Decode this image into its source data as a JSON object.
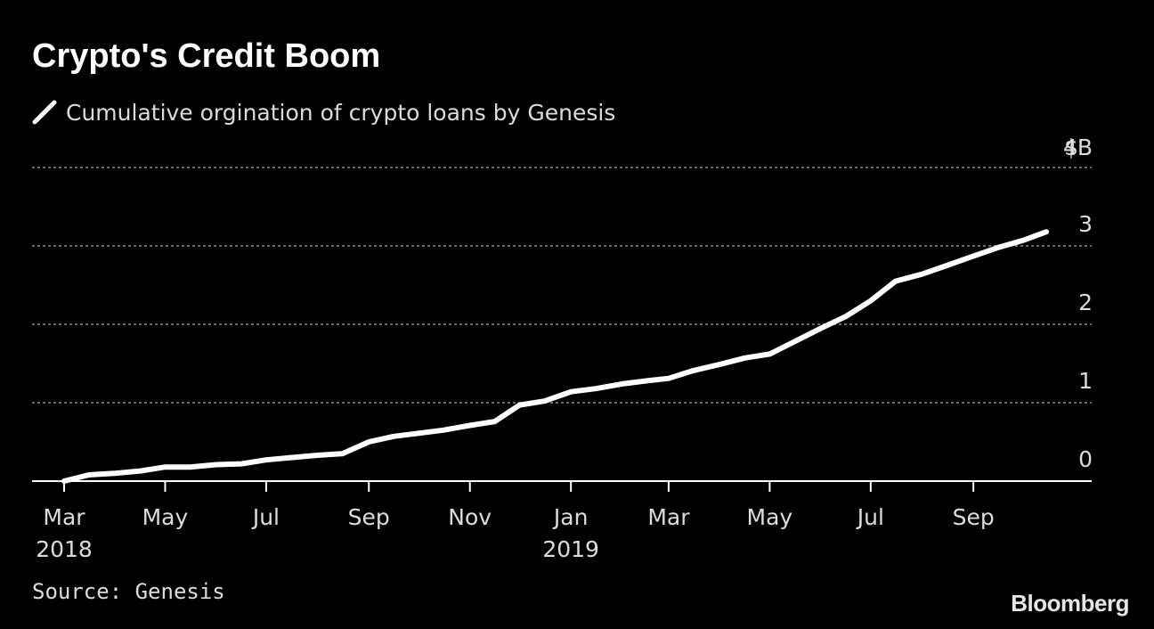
{
  "chart_data": {
    "type": "line",
    "title": "Crypto's Credit Boom",
    "series": [
      {
        "name": "Cumulative orgination of crypto loans by Genesis",
        "color": "#ffffff",
        "x": [
          "2018-03-01",
          "2018-03-16",
          "2018-04-01",
          "2018-04-16",
          "2018-05-01",
          "2018-05-16",
          "2018-06-01",
          "2018-06-16",
          "2018-07-01",
          "2018-07-16",
          "2018-08-01",
          "2018-08-16",
          "2018-09-01",
          "2018-09-16",
          "2018-10-01",
          "2018-10-16",
          "2018-11-01",
          "2018-11-16",
          "2018-12-01",
          "2018-12-16",
          "2019-01-01",
          "2019-01-16",
          "2019-02-01",
          "2019-02-16",
          "2019-03-01",
          "2019-03-16",
          "2019-04-01",
          "2019-04-16",
          "2019-05-01",
          "2019-05-16",
          "2019-06-01",
          "2019-06-16",
          "2019-07-01",
          "2019-07-16",
          "2019-08-01",
          "2019-08-16",
          "2019-09-01",
          "2019-09-16",
          "2019-10-01",
          "2019-10-15"
        ],
        "values": [
          0.0,
          0.08,
          0.1,
          0.13,
          0.18,
          0.18,
          0.21,
          0.22,
          0.27,
          0.3,
          0.33,
          0.35,
          0.5,
          0.57,
          0.61,
          0.65,
          0.71,
          0.76,
          0.97,
          1.02,
          1.14,
          1.18,
          1.24,
          1.28,
          1.31,
          1.41,
          1.49,
          1.57,
          1.62,
          1.78,
          1.95,
          2.1,
          2.3,
          2.55,
          2.64,
          2.75,
          2.87,
          2.98,
          3.07,
          3.18
        ]
      }
    ],
    "y_ticks": [
      0,
      1,
      2,
      3,
      4
    ],
    "y_tick_labels": [
      "0",
      "1",
      "2",
      "3",
      "4B"
    ],
    "y_unit_prefix": "$",
    "ylim": [
      0,
      4
    ],
    "x_ticks": [
      {
        "date": "2018-03-01",
        "label": "Mar",
        "year": "2018"
      },
      {
        "date": "2018-05-01",
        "label": "May",
        "year": ""
      },
      {
        "date": "2018-07-01",
        "label": "Jul",
        "year": ""
      },
      {
        "date": "2018-09-01",
        "label": "Sep",
        "year": ""
      },
      {
        "date": "2018-11-01",
        "label": "Nov",
        "year": ""
      },
      {
        "date": "2019-01-01",
        "label": "Jan",
        "year": "2019"
      },
      {
        "date": "2019-03-01",
        "label": "Mar",
        "year": ""
      },
      {
        "date": "2019-05-01",
        "label": "May",
        "year": ""
      },
      {
        "date": "2019-07-01",
        "label": "Jul",
        "year": ""
      },
      {
        "date": "2019-09-01",
        "label": "Sep",
        "year": ""
      }
    ],
    "grid": true,
    "legend_position": "top-left"
  },
  "footer": {
    "source": "Source: Genesis",
    "brand": "Bloomberg"
  },
  "colors": {
    "background": "#000000",
    "line": "#ffffff",
    "grid": "#8c8c8c",
    "text": "#dcdcdc"
  }
}
